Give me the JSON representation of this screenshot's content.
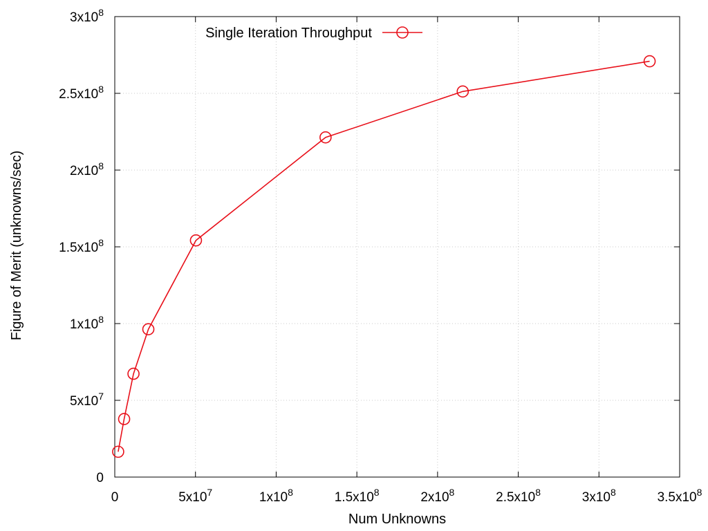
{
  "chart_data": {
    "type": "line",
    "title": "",
    "xlabel": "Num Unknowns",
    "ylabel": "Figure of Merit (unknowns/sec)",
    "xlim": [
      0,
      350000000
    ],
    "ylim": [
      0,
      300000000
    ],
    "grid": true,
    "legend_position": "top-left",
    "x_ticks": [
      {
        "value": 0,
        "base": "0",
        "exp": ""
      },
      {
        "value": 50000000,
        "base": "5x10",
        "exp": "7"
      },
      {
        "value": 100000000,
        "base": "1x10",
        "exp": "8"
      },
      {
        "value": 150000000,
        "base": "1.5x10",
        "exp": "8"
      },
      {
        "value": 200000000,
        "base": "2x10",
        "exp": "8"
      },
      {
        "value": 250000000,
        "base": "2.5x10",
        "exp": "8"
      },
      {
        "value": 300000000,
        "base": "3x10",
        "exp": "8"
      },
      {
        "value": 350000000,
        "base": "3.5x10",
        "exp": "8"
      }
    ],
    "y_ticks": [
      {
        "value": 0,
        "base": "0",
        "exp": ""
      },
      {
        "value": 50000000,
        "base": "5x10",
        "exp": "7"
      },
      {
        "value": 100000000,
        "base": "1x10",
        "exp": "8"
      },
      {
        "value": 150000000,
        "base": "1.5x10",
        "exp": "8"
      },
      {
        "value": 200000000,
        "base": "2x10",
        "exp": "8"
      },
      {
        "value": 250000000,
        "base": "2.5x10",
        "exp": "8"
      },
      {
        "value": 300000000,
        "base": "3x10",
        "exp": "8"
      }
    ],
    "series": [
      {
        "name": "Single Iteration Throughput",
        "color": "#e8101a",
        "marker": "open-circle",
        "x": [
          2100000,
          5800000,
          11600000,
          20800000,
          50300000,
          130600000,
          215600000,
          331400000
        ],
        "y": [
          16500000,
          37800000,
          67300000,
          96300000,
          154200000,
          221300000,
          251200000,
          270900000
        ]
      }
    ]
  }
}
